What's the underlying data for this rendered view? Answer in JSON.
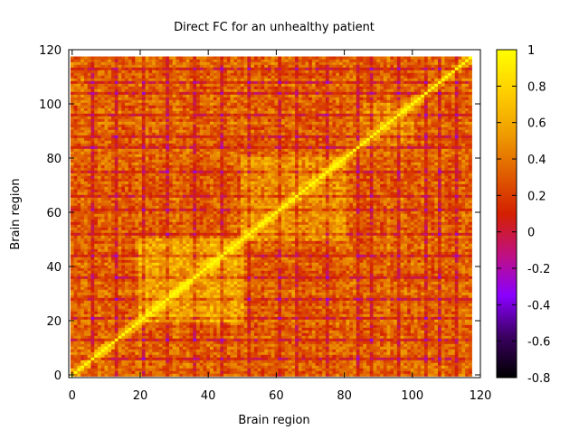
{
  "chart_data": {
    "type": "heatmap",
    "title": "Direct FC for an unhealthy patient",
    "xlabel": "Brain region",
    "ylabel": "Brain region",
    "xlim": [
      -1,
      120
    ],
    "ylim": [
      -1,
      120
    ],
    "grid_size": 118,
    "x_ticks": [
      "0",
      "20",
      "40",
      "60",
      "80",
      "100",
      "120"
    ],
    "x_tick_values": [
      0,
      20,
      40,
      60,
      80,
      100,
      120
    ],
    "y_ticks": [
      "0",
      "20",
      "40",
      "60",
      "80",
      "100",
      "120"
    ],
    "y_tick_values": [
      0,
      20,
      40,
      60,
      80,
      100,
      120
    ],
    "colorbar": {
      "range": [
        -0.8,
        1
      ],
      "ticks": [
        "1",
        "0.8",
        "0.6",
        "0.4",
        "0.2",
        "0",
        "-0.2",
        "-0.4",
        "-0.6",
        "-0.8"
      ],
      "tick_values": [
        1,
        0.8,
        0.6,
        0.4,
        0.2,
        0,
        -0.2,
        -0.4,
        -0.6,
        -0.8
      ],
      "palette": [
        "#000000",
        "#3a0060",
        "#8a00ff",
        "#c01080",
        "#d42000",
        "#e06000",
        "#f0a000",
        "#ffd000",
        "#ffff00"
      ]
    },
    "diagonal_value": 1,
    "typical_off_diagonal_range": [
      -0.3,
      0.6
    ],
    "block_structure": [
      {
        "regions": [
          20,
          50
        ],
        "typical_value": 0.6
      },
      {
        "regions": [
          50,
          80
        ],
        "typical_value": 0.55
      },
      {
        "regions": [
          85,
          100
        ],
        "typical_value": 0.5
      }
    ],
    "low_correlation_regions": [
      6,
      13,
      21,
      28,
      36,
      44,
      52,
      61,
      66,
      75,
      84,
      88,
      96,
      104,
      108,
      113
    ]
  }
}
